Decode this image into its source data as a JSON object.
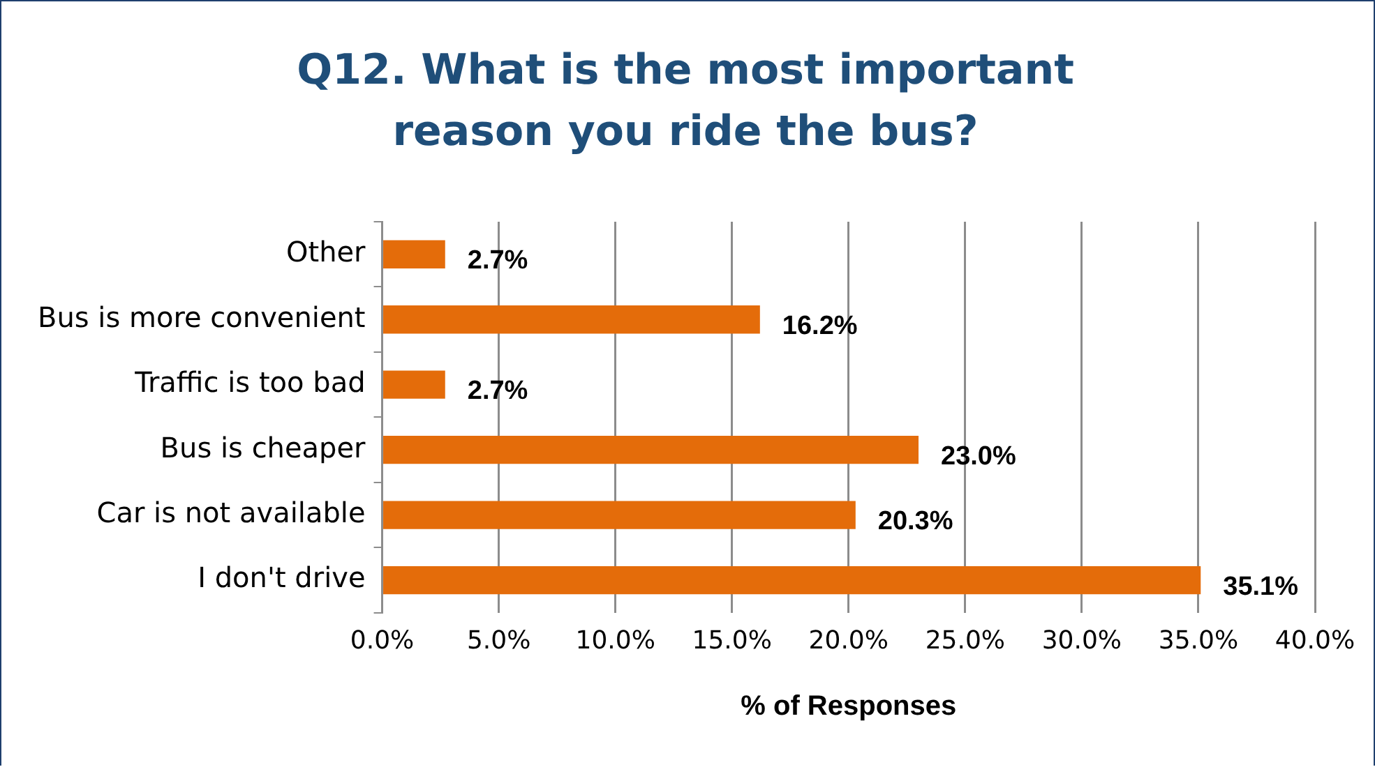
{
  "chart_data": {
    "type": "bar",
    "orientation": "horizontal",
    "title": "Q12. What is the most important reason you ride the bus?",
    "xlabel": "% of Responses",
    "categories": [
      "Other",
      "Bus is more convenient",
      "Traffic is too bad",
      "Bus is cheaper",
      "Car is not available",
      "I don't drive"
    ],
    "values": [
      2.7,
      16.2,
      2.7,
      23.0,
      20.3,
      35.1
    ],
    "value_labels": [
      "2.7%",
      "16.2%",
      "2.7%",
      "23.0%",
      "20.3%",
      "35.1%"
    ],
    "color": "#e46c0a",
    "xlim": [
      0,
      40
    ],
    "xticks": [
      {
        "value": 0,
        "label": "0.0%"
      },
      {
        "value": 5,
        "label": "5.0%"
      },
      {
        "value": 10,
        "label": "10.0%"
      },
      {
        "value": 15,
        "label": "15.0%"
      },
      {
        "value": 20,
        "label": "20.0%"
      },
      {
        "value": 25,
        "label": "25.0%"
      },
      {
        "value": 30,
        "label": "30.0%"
      },
      {
        "value": 35,
        "label": "35.0%"
      },
      {
        "value": 40,
        "label": "40.0%"
      }
    ],
    "grid": "x",
    "legend": false
  }
}
